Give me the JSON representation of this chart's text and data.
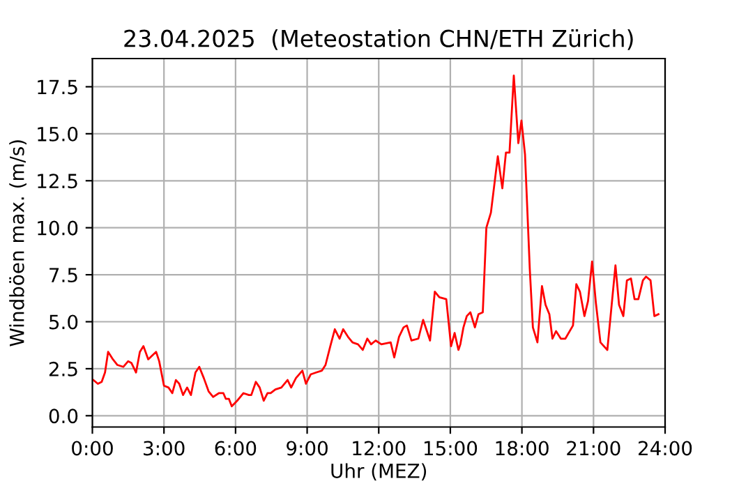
{
  "chart_data": {
    "type": "line",
    "title": "23.04.2025  (Meteostation CHN/ETH Zürich)",
    "xlabel": "Uhr (MEZ)",
    "ylabel": "Windböen max. (m/s)",
    "series": [
      {
        "color": "#ff0000",
        "x": [
          0.04,
          0.23,
          0.39,
          0.53,
          0.66,
          0.86,
          1.05,
          1.3,
          1.5,
          1.64,
          1.83,
          1.99,
          2.14,
          2.34,
          2.67,
          2.8,
          3.0,
          3.19,
          3.35,
          3.5,
          3.64,
          3.8,
          3.97,
          4.13,
          4.32,
          4.48,
          4.67,
          4.87,
          5.06,
          5.3,
          5.49,
          5.59,
          5.72,
          5.84,
          6.07,
          6.33,
          6.56,
          6.66,
          6.85,
          7.01,
          7.18,
          7.34,
          7.47,
          7.67,
          7.92,
          8.18,
          8.33,
          8.53,
          8.8,
          8.95,
          9.15,
          9.38,
          9.62,
          9.77,
          9.97,
          10.16,
          10.36,
          10.51,
          10.71,
          10.9,
          11.13,
          11.33,
          11.52,
          11.68,
          11.87,
          12.11,
          12.5,
          12.65,
          12.85,
          13.04,
          13.18,
          13.37,
          13.66,
          13.86,
          14.15,
          14.35,
          14.54,
          14.83,
          15.03,
          15.18,
          15.34,
          15.42,
          15.55,
          15.69,
          15.84,
          16.03,
          16.18,
          16.36,
          16.51,
          16.7,
          16.99,
          17.18,
          17.33,
          17.48,
          17.66,
          17.85,
          17.98,
          18.13,
          18.33,
          18.46,
          18.65,
          18.84,
          18.99,
          19.15,
          19.28,
          19.43,
          19.63,
          19.82,
          20.14,
          20.28,
          20.43,
          20.62,
          20.77,
          20.94,
          21.1,
          21.29,
          21.58,
          21.92,
          22.07,
          22.25,
          22.4,
          22.57,
          22.72,
          22.88,
          23.07,
          23.2,
          23.39,
          23.55,
          23.72
        ],
        "values": [
          1.9,
          1.7,
          1.8,
          2.3,
          3.4,
          3.0,
          2.7,
          2.6,
          2.9,
          2.8,
          2.3,
          3.4,
          3.7,
          3.0,
          3.4,
          2.9,
          1.6,
          1.5,
          1.2,
          1.9,
          1.7,
          1.1,
          1.5,
          1.1,
          2.3,
          2.6,
          2.0,
          1.3,
          1.0,
          1.2,
          1.2,
          0.9,
          0.9,
          0.5,
          0.8,
          1.2,
          1.1,
          1.1,
          1.8,
          1.5,
          0.8,
          1.2,
          1.2,
          1.4,
          1.5,
          1.9,
          1.5,
          2.0,
          2.4,
          1.7,
          2.2,
          2.3,
          2.4,
          2.7,
          3.7,
          4.6,
          4.1,
          4.6,
          4.2,
          3.9,
          3.8,
          3.5,
          4.1,
          3.8,
          4.0,
          3.8,
          3.9,
          3.1,
          4.2,
          4.7,
          4.8,
          4.0,
          4.1,
          5.1,
          4.0,
          6.6,
          6.3,
          6.2,
          3.7,
          4.4,
          3.5,
          3.8,
          4.7,
          5.3,
          5.5,
          4.7,
          5.4,
          5.5,
          10.0,
          10.8,
          13.8,
          12.1,
          14.0,
          14.0,
          18.1,
          14.5,
          15.7,
          13.9,
          7.8,
          4.7,
          3.9,
          6.9,
          5.9,
          5.4,
          4.1,
          4.5,
          4.1,
          4.1,
          4.8,
          7.0,
          6.6,
          5.3,
          6.1,
          8.2,
          6.0,
          3.9,
          3.5,
          8.0,
          5.9,
          5.3,
          7.2,
          7.3,
          6.2,
          6.2,
          7.2,
          7.4,
          7.2,
          5.3,
          5.4
        ]
      }
    ],
    "xlim": [
      0,
      24
    ],
    "ylim": [
      -0.6,
      19.0
    ],
    "xticks": [
      {
        "value": 0,
        "label": "0:00"
      },
      {
        "value": 3,
        "label": "3:00"
      },
      {
        "value": 6,
        "label": "6:00"
      },
      {
        "value": 9,
        "label": "9:00"
      },
      {
        "value": 12,
        "label": "12:00"
      },
      {
        "value": 15,
        "label": "15:00"
      },
      {
        "value": 18,
        "label": "18:00"
      },
      {
        "value": 21,
        "label": "21:00"
      },
      {
        "value": 24,
        "label": "24:00"
      }
    ],
    "yticks": [
      {
        "value": 0,
        "label": "0.0"
      },
      {
        "value": 2.5,
        "label": "2.5"
      },
      {
        "value": 5,
        "label": "5.0"
      },
      {
        "value": 7.5,
        "label": "7.5"
      },
      {
        "value": 10,
        "label": "10.0"
      },
      {
        "value": 12.5,
        "label": "12.5"
      },
      {
        "value": 15,
        "label": "15.0"
      },
      {
        "value": 17.5,
        "label": "17.5"
      }
    ],
    "grid": true
  }
}
